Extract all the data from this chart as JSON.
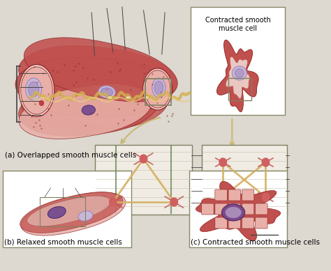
{
  "bg_color": "#ddd8d0",
  "label_a": "(a) Overlapped smooth muscle cells",
  "label_b": "(b) Relaxed smooth muscle cells",
  "label_c": "(c) Contracted smooth muscle cells",
  "label_inset": "Contracted smooth\nmuscle cell",
  "muscle_red": "#c0504d",
  "muscle_dark": "#8b2020",
  "muscle_light": "#e8b0a8",
  "muscle_pink": "#e8c8c0",
  "nucleus_purple": "#9b80b8",
  "nucleus_light": "#c8b8d8",
  "line_color": "#444444",
  "box_color": "#888880",
  "actin_color": "#d4b060",
  "node_color": "#d06060",
  "font_size_label": 7.5,
  "font_size_inset": 7.0
}
